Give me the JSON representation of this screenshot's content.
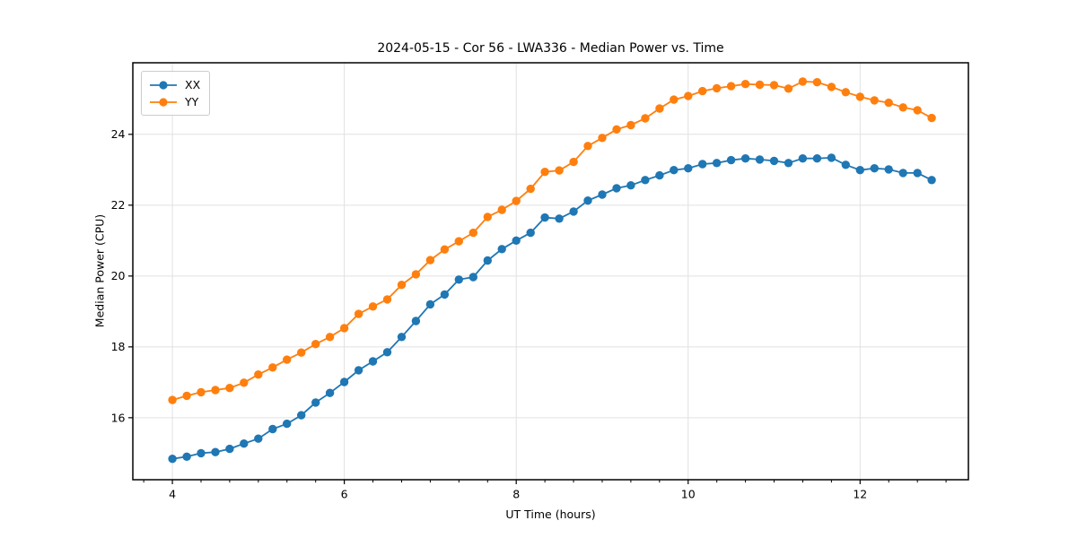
{
  "title": "2024-05-15 - Cor 56 - LWA336 - Median Power vs. Time",
  "chart_data": {
    "type": "line",
    "title": "2024-05-15 - Cor 56 - LWA336 - Median Power vs. Time",
    "xlabel": "UT Time (hours)",
    "ylabel": "Median Power (CPU)",
    "xlim": [
      3.54,
      13.26
    ],
    "ylim": [
      14.25,
      26.02
    ],
    "x_major_ticks": [
      4,
      6,
      8,
      10,
      12
    ],
    "x_minor_tick_step": 0.3333,
    "y_major_ticks": [
      16,
      18,
      20,
      22,
      24
    ],
    "grid": "major",
    "legend_position": "upper-left",
    "colors": {
      "grid": "#e1e1e1",
      "spine": "#000000",
      "text": "#000000",
      "background": "#ffffff"
    },
    "x": [
      4.0,
      4.167,
      4.333,
      4.5,
      4.667,
      4.833,
      5.0,
      5.167,
      5.333,
      5.5,
      5.667,
      5.833,
      6.0,
      6.167,
      6.333,
      6.5,
      6.667,
      6.833,
      7.0,
      7.167,
      7.333,
      7.5,
      7.667,
      7.833,
      8.0,
      8.167,
      8.333,
      8.5,
      8.667,
      8.833,
      9.0,
      9.167,
      9.333,
      9.5,
      9.667,
      9.833,
      10.0,
      10.167,
      10.333,
      10.5,
      10.667,
      10.833,
      11.0,
      11.167,
      11.333,
      11.5,
      11.667,
      11.833,
      12.0,
      12.167,
      12.333,
      12.5,
      12.667,
      12.833
    ],
    "series": [
      {
        "name": "XX",
        "color": "#1f77b4",
        "values": [
          14.84,
          14.9,
          15.0,
          15.03,
          15.12,
          15.27,
          15.41,
          15.68,
          15.83,
          16.07,
          16.43,
          16.7,
          17.01,
          17.34,
          17.59,
          17.85,
          18.28,
          18.73,
          19.2,
          19.48,
          19.9,
          19.97,
          20.44,
          20.76,
          21.0,
          21.22,
          21.65,
          21.62,
          21.82,
          22.13,
          22.3,
          22.48,
          22.56,
          22.71,
          22.84,
          22.99,
          23.04,
          23.16,
          23.19,
          23.27,
          23.32,
          23.29,
          23.25,
          23.19,
          23.32,
          23.32,
          23.34,
          23.14,
          22.99,
          23.04,
          23.01,
          22.91,
          22.91,
          22.71
        ]
      },
      {
        "name": "YY",
        "color": "#ff7f0e",
        "values": [
          16.5,
          16.62,
          16.72,
          16.78,
          16.84,
          16.99,
          17.22,
          17.42,
          17.64,
          17.84,
          18.08,
          18.28,
          18.53,
          18.93,
          19.14,
          19.34,
          19.75,
          20.05,
          20.45,
          20.75,
          20.98,
          21.22,
          21.67,
          21.87,
          22.12,
          22.46,
          22.94,
          22.98,
          23.22,
          23.67,
          23.9,
          24.14,
          24.26,
          24.45,
          24.73,
          24.98,
          25.08,
          25.22,
          25.3,
          25.36,
          25.42,
          25.4,
          25.39,
          25.29,
          25.49,
          25.47,
          25.34,
          25.19,
          25.06,
          24.96,
          24.89,
          24.76,
          24.68,
          24.46
        ]
      }
    ]
  }
}
